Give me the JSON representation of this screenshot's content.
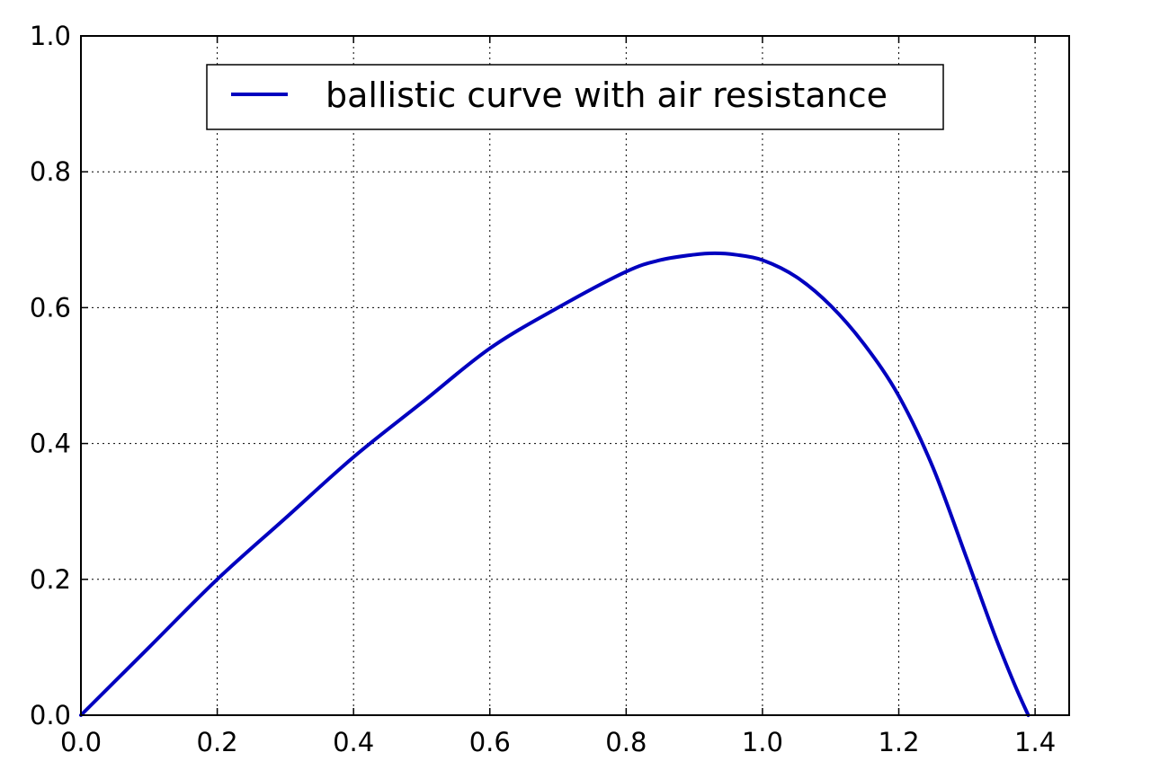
{
  "chart_data": {
    "type": "line",
    "title": "",
    "xlabel": "",
    "ylabel": "",
    "xlim": [
      0.0,
      1.45
    ],
    "ylim": [
      0.0,
      1.0
    ],
    "grid": true,
    "grid_style": "dotted",
    "legend_position": "top-center",
    "x_tick_labels": [
      "0.0",
      "0.2",
      "0.4",
      "0.6",
      "0.8",
      "1.0",
      "1.2",
      "1.4"
    ],
    "y_tick_labels": [
      "0.0",
      "0.2",
      "0.4",
      "0.6",
      "0.8",
      "1.0"
    ],
    "series": [
      {
        "name": "ballistic curve with air resistance",
        "color": "#0000bf",
        "x": [
          0.0,
          0.1,
          0.2,
          0.3,
          0.4,
          0.5,
          0.6,
          0.7,
          0.8,
          0.85,
          0.9,
          0.93,
          0.96,
          1.0,
          1.05,
          1.1,
          1.15,
          1.2,
          1.25,
          1.3,
          1.34,
          1.37,
          1.39
        ],
        "y": [
          0.0,
          0.1,
          0.2,
          0.29,
          0.38,
          0.46,
          0.54,
          0.6,
          0.653,
          0.67,
          0.678,
          0.68,
          0.678,
          0.67,
          0.645,
          0.603,
          0.545,
          0.47,
          0.365,
          0.23,
          0.12,
          0.045,
          0.0
        ]
      }
    ]
  }
}
